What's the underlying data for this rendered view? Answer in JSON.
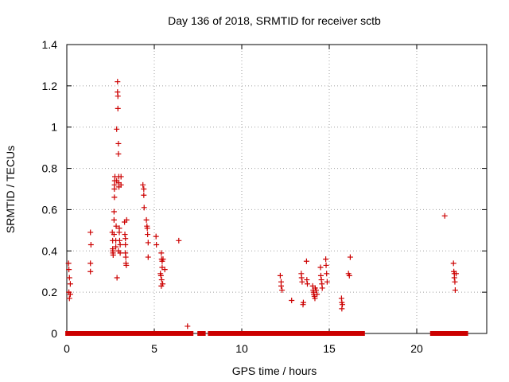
{
  "chart_data": {
    "type": "scatter",
    "title": "Day 136 of 2018, SRMTID for receiver sctb",
    "xlabel": "GPS time / hours",
    "ylabel": "SRMTID / TECUs",
    "xlim": [
      0,
      24
    ],
    "ylim": [
      0,
      1.4
    ],
    "xticks": [
      0,
      5,
      10,
      15,
      20
    ],
    "yticks": [
      0,
      0.2,
      0.4,
      0.6,
      0.8,
      1,
      1.2,
      1.4
    ],
    "ytick_labels": [
      "0",
      "0.2",
      "0.4",
      "0.6",
      "0.8",
      "1",
      "1.2",
      "1.4"
    ],
    "xtick_labels": [
      "0",
      "5",
      "10",
      "15",
      "20"
    ],
    "grid": true,
    "marker": "+",
    "color": "#cc0000",
    "zero_ranges": [
      [
        0.05,
        7.1
      ],
      [
        7.6,
        7.8
      ],
      [
        8.2,
        8.3
      ],
      [
        8.55,
        8.65
      ],
      [
        8.8,
        9.5
      ],
      [
        9.7,
        16.9
      ],
      [
        20.9,
        22.8
      ]
    ],
    "points": [
      [
        0.1,
        0.34
      ],
      [
        0.12,
        0.31
      ],
      [
        0.15,
        0.27
      ],
      [
        0.2,
        0.24
      ],
      [
        0.12,
        0.2
      ],
      [
        0.15,
        0.17
      ],
      [
        0.2,
        0.19
      ],
      [
        1.35,
        0.49
      ],
      [
        1.38,
        0.43
      ],
      [
        1.35,
        0.34
      ],
      [
        1.35,
        0.3
      ],
      [
        2.6,
        0.49
      ],
      [
        2.62,
        0.45
      ],
      [
        2.62,
        0.41
      ],
      [
        2.63,
        0.4
      ],
      [
        2.64,
        0.39
      ],
      [
        2.65,
        0.38
      ],
      [
        2.7,
        0.48
      ],
      [
        2.7,
        0.55
      ],
      [
        2.7,
        0.59
      ],
      [
        2.72,
        0.66
      ],
      [
        2.72,
        0.7
      ],
      [
        2.73,
        0.72
      ],
      [
        2.74,
        0.74
      ],
      [
        2.75,
        0.76
      ],
      [
        2.8,
        0.42
      ],
      [
        2.8,
        0.45
      ],
      [
        2.82,
        0.52
      ],
      [
        2.85,
        0.74
      ],
      [
        2.85,
        0.99
      ],
      [
        2.87,
        0.27
      ],
      [
        2.9,
        1.22
      ],
      [
        2.9,
        1.17
      ],
      [
        2.92,
        1.15
      ],
      [
        2.92,
        1.09
      ],
      [
        2.95,
        0.92
      ],
      [
        2.95,
        0.87
      ],
      [
        2.97,
        0.76
      ],
      [
        2.97,
        0.73
      ],
      [
        2.98,
        0.71
      ],
      [
        3.0,
        0.51
      ],
      [
        3.0,
        0.49
      ],
      [
        3.02,
        0.45
      ],
      [
        3.05,
        0.43
      ],
      [
        3.1,
        0.72
      ],
      [
        3.1,
        0.76
      ],
      [
        3.05,
        0.39
      ],
      [
        2.95,
        0.4
      ],
      [
        3.3,
        0.54
      ],
      [
        3.32,
        0.48
      ],
      [
        3.35,
        0.46
      ],
      [
        3.35,
        0.43
      ],
      [
        3.35,
        0.39
      ],
      [
        3.37,
        0.37
      ],
      [
        3.38,
        0.34
      ],
      [
        3.4,
        0.33
      ],
      [
        3.42,
        0.55
      ],
      [
        4.35,
        0.72
      ],
      [
        4.4,
        0.7
      ],
      [
        4.4,
        0.67
      ],
      [
        4.42,
        0.61
      ],
      [
        4.55,
        0.55
      ],
      [
        4.58,
        0.52
      ],
      [
        4.6,
        0.51
      ],
      [
        4.62,
        0.48
      ],
      [
        4.65,
        0.44
      ],
      [
        4.65,
        0.37
      ],
      [
        5.1,
        0.47
      ],
      [
        5.12,
        0.43
      ],
      [
        5.4,
        0.39
      ],
      [
        5.42,
        0.36
      ],
      [
        5.45,
        0.35
      ],
      [
        5.45,
        0.32
      ],
      [
        5.5,
        0.36
      ],
      [
        5.35,
        0.29
      ],
      [
        5.38,
        0.28
      ],
      [
        5.42,
        0.26
      ],
      [
        5.4,
        0.23
      ],
      [
        5.48,
        0.24
      ],
      [
        5.6,
        0.31
      ],
      [
        6.4,
        0.45
      ],
      [
        6.9,
        0.035
      ],
      [
        12.2,
        0.28
      ],
      [
        12.25,
        0.25
      ],
      [
        12.25,
        0.23
      ],
      [
        12.3,
        0.21
      ],
      [
        12.85,
        0.16
      ],
      [
        13.4,
        0.29
      ],
      [
        13.42,
        0.27
      ],
      [
        13.45,
        0.25
      ],
      [
        13.5,
        0.14
      ],
      [
        13.52,
        0.15
      ],
      [
        13.7,
        0.35
      ],
      [
        13.72,
        0.26
      ],
      [
        13.75,
        0.24
      ],
      [
        14.05,
        0.23
      ],
      [
        14.08,
        0.21
      ],
      [
        14.1,
        0.2
      ],
      [
        14.12,
        0.19
      ],
      [
        14.15,
        0.18
      ],
      [
        14.18,
        0.17
      ],
      [
        14.2,
        0.22
      ],
      [
        14.25,
        0.21
      ],
      [
        14.3,
        0.19
      ],
      [
        14.5,
        0.32
      ],
      [
        14.52,
        0.28
      ],
      [
        14.55,
        0.26
      ],
      [
        14.58,
        0.24
      ],
      [
        14.6,
        0.22
      ],
      [
        14.8,
        0.36
      ],
      [
        14.82,
        0.33
      ],
      [
        14.85,
        0.29
      ],
      [
        14.88,
        0.25
      ],
      [
        15.7,
        0.17
      ],
      [
        15.72,
        0.15
      ],
      [
        15.75,
        0.14
      ],
      [
        15.72,
        0.12
      ],
      [
        16.1,
        0.29
      ],
      [
        16.15,
        0.28
      ],
      [
        16.2,
        0.37
      ],
      [
        21.6,
        0.57
      ],
      [
        22.1,
        0.34
      ],
      [
        22.12,
        0.3
      ],
      [
        22.15,
        0.29
      ],
      [
        22.15,
        0.27
      ],
      [
        22.18,
        0.25
      ],
      [
        22.2,
        0.21
      ],
      [
        22.25,
        0.29
      ]
    ]
  }
}
